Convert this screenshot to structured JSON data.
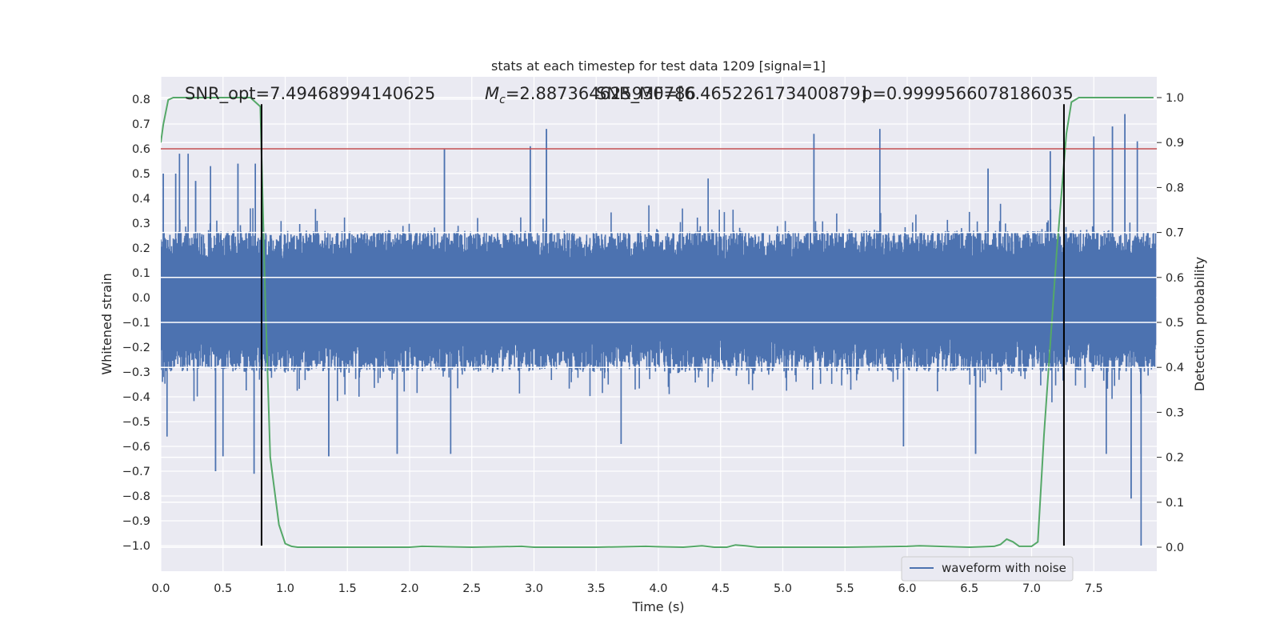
{
  "chart_data": {
    "type": "line",
    "title": "stats at each timestep for test data 1209 [signal=1]",
    "xlabel": "Time (s)",
    "ylabel": "Whitened strain",
    "y2label": "Detection probability",
    "xlim": [
      0.0,
      8.0
    ],
    "ylim": [
      -1.085,
      0.865
    ],
    "y2lim": [
      -0.047,
      1.047
    ],
    "grid": true,
    "legend_position": "lower-right",
    "xticks": [
      "0.0",
      "0.5",
      "1.0",
      "1.5",
      "2.0",
      "2.5",
      "3.0",
      "3.5",
      "4.0",
      "4.5",
      "5.0",
      "5.5",
      "6.0",
      "6.5",
      "7.0",
      "7.5"
    ],
    "yticks": [
      "0.8",
      "0.7",
      "0.6",
      "0.5",
      "0.4",
      "0.3",
      "0.2",
      "0.1",
      "0.0",
      "−0.1",
      "−0.2",
      "−0.3",
      "−0.4",
      "−0.5",
      "−0.6",
      "−0.7",
      "−0.8",
      "−0.9",
      "−1.0"
    ],
    "y2ticks": [
      "1.0",
      "0.9",
      "0.8",
      "0.7",
      "0.6",
      "0.5",
      "0.4",
      "0.3",
      "0.2",
      "0.1",
      "0.0"
    ],
    "annotations": {
      "snr_opt": "SNR_opt=7.49468994140625",
      "mc_prefix": "M",
      "mc_sub": "c",
      "mc_value": "=2.887364625930786",
      "snr_mf": "SNR_MF=[6.465226173400879]",
      "p_value": "p=0.9999566078186035"
    },
    "threshold": {
      "y": 0.6,
      "color": "#c44e52"
    },
    "vlines": [
      {
        "x": 0.81,
        "y_from": -1.0,
        "y_to": 0.78
      },
      {
        "x": 7.26,
        "y_from": -1.0,
        "y_to": 0.78
      }
    ],
    "series": [
      {
        "name": "waveform with noise",
        "axis": "left",
        "color": "#4c72b0",
        "kind": "noise-strain",
        "t_start": 0.0,
        "t_end": 8.0,
        "envelope_pos": 0.27,
        "envelope_neg": -0.3,
        "spikes": [
          [
            0.02,
            0.5
          ],
          [
            0.12,
            0.5
          ],
          [
            0.15,
            0.58
          ],
          [
            0.22,
            0.58
          ],
          [
            0.28,
            0.47
          ],
          [
            0.4,
            0.53
          ],
          [
            0.62,
            0.54
          ],
          [
            0.76,
            0.54
          ],
          [
            2.28,
            0.6
          ],
          [
            2.97,
            0.61
          ],
          [
            3.1,
            0.68
          ],
          [
            4.4,
            0.48
          ],
          [
            5.25,
            0.66
          ],
          [
            5.78,
            0.68
          ],
          [
            6.65,
            0.52
          ],
          [
            7.15,
            0.59
          ],
          [
            7.5,
            0.65
          ],
          [
            7.65,
            0.69
          ],
          [
            7.75,
            0.74
          ],
          [
            7.85,
            0.63
          ],
          [
            0.05,
            -0.56
          ],
          [
            0.44,
            -0.7
          ],
          [
            0.5,
            -0.64
          ],
          [
            0.75,
            -0.71
          ],
          [
            1.35,
            -0.64
          ],
          [
            1.9,
            -0.63
          ],
          [
            2.33,
            -0.63
          ],
          [
            3.7,
            -0.59
          ],
          [
            5.97,
            -0.6
          ],
          [
            6.55,
            -0.63
          ],
          [
            7.6,
            -0.63
          ],
          [
            7.8,
            -0.81
          ],
          [
            7.88,
            -1.0
          ]
        ]
      },
      {
        "name": "detection probability",
        "axis": "right",
        "color": "#55a868",
        "x": [
          0.0,
          0.02,
          0.06,
          0.1,
          0.2,
          0.4,
          0.6,
          0.72,
          0.8,
          0.84,
          0.88,
          0.95,
          1.0,
          1.05,
          1.1,
          1.2,
          1.5,
          2.0,
          2.1,
          2.5,
          2.9,
          3.0,
          3.5,
          3.9,
          4.0,
          4.2,
          4.35,
          4.45,
          4.55,
          4.62,
          4.7,
          4.8,
          5.0,
          5.5,
          6.0,
          6.1,
          6.5,
          6.7,
          6.75,
          6.8,
          6.85,
          6.9,
          7.0,
          7.05,
          7.1,
          7.2,
          7.28,
          7.32,
          7.38,
          7.5,
          7.9,
          7.98
        ],
        "values": [
          0.9,
          0.94,
          0.995,
          1.0,
          1.0,
          1.0,
          1.0,
          1.0,
          0.98,
          0.55,
          0.2,
          0.05,
          0.008,
          0.002,
          0.0,
          0.0,
          0.0,
          0.0,
          0.002,
          0.0,
          0.002,
          0.0,
          0.0,
          0.002,
          0.001,
          0.0,
          0.003,
          0.0,
          0.0,
          0.005,
          0.003,
          0.0,
          0.0,
          0.0,
          0.002,
          0.003,
          0.0,
          0.002,
          0.006,
          0.018,
          0.012,
          0.002,
          0.002,
          0.012,
          0.25,
          0.65,
          0.92,
          0.99,
          1.0,
          1.0,
          1.0,
          1.0
        ]
      }
    ]
  }
}
